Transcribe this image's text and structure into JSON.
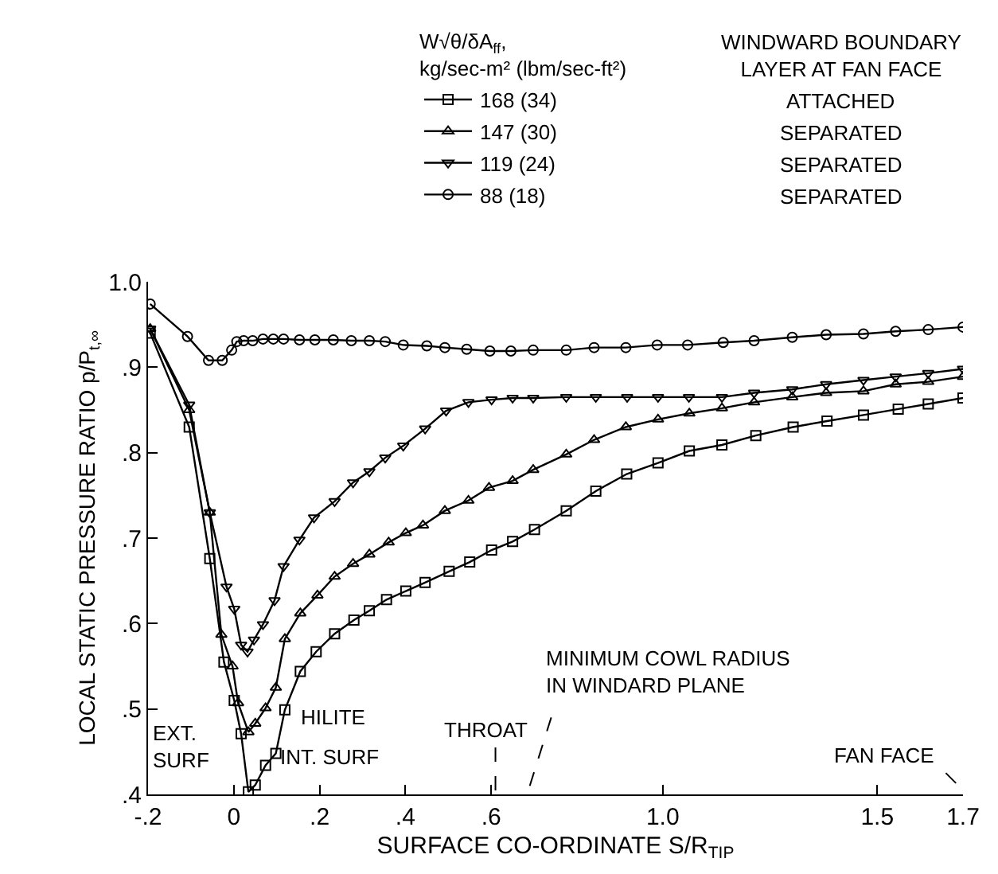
{
  "chart_data": {
    "type": "line",
    "xlabel": "SURFACE CO-ORDINATE S/R$_{TIP}$",
    "ylabel": "LOCAL STATIC PRESSURE RATIO p/P$_{t,∞}$",
    "legend_title": "W√θ/δA$_{ff}$,\nkg/sec-m² (lbm/sec-ft²)",
    "legend": "top",
    "grid": false,
    "xlim": [
      -0.2,
      1.7
    ],
    "ylim": [
      0.4,
      1.0
    ],
    "xticks": [
      {
        "value": -0.2,
        "label": "-.2"
      },
      0,
      {
        "value": 0.2,
        "label": ".2"
      },
      {
        "value": 0.4,
        "label": ".4"
      },
      {
        "value": 0.6,
        "label": ".6"
      },
      {
        "value": 1.0,
        "label": "1.0"
      },
      {
        "value": 1.5,
        "label": "1.5"
      },
      {
        "value": 1.7,
        "label": "1.7"
      }
    ],
    "yticks": [
      {
        "value": 0.4,
        "label": ".4"
      },
      {
        "value": 0.5,
        "label": ".5"
      },
      {
        "value": 0.6,
        "label": ".6"
      },
      {
        "value": 0.7,
        "label": ".7"
      },
      {
        "value": 0.8,
        "label": ".8"
      },
      {
        "value": 0.9,
        "label": ".9"
      },
      {
        "value": 1.0,
        "label": "1.0"
      }
    ],
    "series": [
      {
        "name": "168 (34)",
        "color": "#000000",
        "marker": "square",
        "x": [
          -0.195,
          -0.104,
          -0.056,
          -0.023,
          0.001,
          0.017,
          0.034,
          0.05,
          0.074,
          0.098,
          0.119,
          0.155,
          0.192,
          0.235,
          0.28,
          0.316,
          0.356,
          0.401,
          0.446,
          0.502,
          0.55,
          0.601,
          0.65,
          0.701,
          0.775,
          0.844,
          0.916,
          0.989,
          1.062,
          1.138,
          1.217,
          1.304,
          1.383,
          1.468,
          1.549,
          1.619,
          1.7
        ],
        "values": [
          0.94,
          0.83,
          0.676,
          0.555,
          0.51,
          0.471,
          0.403,
          0.411,
          0.434,
          0.448,
          0.499,
          0.544,
          0.567,
          0.588,
          0.604,
          0.615,
          0.628,
          0.638,
          0.648,
          0.661,
          0.672,
          0.686,
          0.696,
          0.71,
          0.732,
          0.755,
          0.775,
          0.788,
          0.802,
          0.809,
          0.82,
          0.83,
          0.837,
          0.844,
          0.851,
          0.857,
          0.864
        ]
      },
      {
        "name": "147 (30)",
        "color": "#000000",
        "marker": "triangle",
        "x": [
          -0.195,
          -0.104,
          -0.056,
          -0.029,
          -0.003,
          0.01,
          0.034,
          0.05,
          0.074,
          0.098,
          0.119,
          0.155,
          0.195,
          0.235,
          0.278,
          0.316,
          0.361,
          0.401,
          0.441,
          0.492,
          0.547,
          0.595,
          0.65,
          0.698,
          0.775,
          0.84,
          0.914,
          0.989,
          1.062,
          1.138,
          1.213,
          1.302,
          1.381,
          1.468,
          1.543,
          1.619,
          1.7
        ],
        "values": [
          0.945,
          0.85,
          0.73,
          0.587,
          0.55,
          0.507,
          0.473,
          0.483,
          0.501,
          0.525,
          0.582,
          0.612,
          0.633,
          0.655,
          0.67,
          0.681,
          0.695,
          0.706,
          0.715,
          0.732,
          0.744,
          0.759,
          0.767,
          0.78,
          0.798,
          0.815,
          0.83,
          0.839,
          0.846,
          0.852,
          0.859,
          0.865,
          0.87,
          0.872,
          0.88,
          0.883,
          0.889
        ]
      },
      {
        "name": "119 (24)",
        "color": "#000000",
        "marker": "triangle-down",
        "x": [
          -0.195,
          -0.104,
          -0.056,
          -0.017,
          0.001,
          0.017,
          0.032,
          0.047,
          0.068,
          0.095,
          0.116,
          0.153,
          0.187,
          0.235,
          0.278,
          0.316,
          0.353,
          0.395,
          0.446,
          0.495,
          0.547,
          0.601,
          0.65,
          0.698,
          0.775,
          0.844,
          0.917,
          0.989,
          1.061,
          1.138,
          1.213,
          1.302,
          1.381,
          1.468,
          1.543,
          1.619,
          1.7
        ],
        "values": [
          0.945,
          0.856,
          0.73,
          0.643,
          0.617,
          0.575,
          0.567,
          0.581,
          0.599,
          0.627,
          0.667,
          0.698,
          0.724,
          0.743,
          0.765,
          0.778,
          0.794,
          0.808,
          0.828,
          0.849,
          0.859,
          0.862,
          0.864,
          0.864,
          0.865,
          0.865,
          0.865,
          0.865,
          0.865,
          0.865,
          0.87,
          0.874,
          0.88,
          0.885,
          0.889,
          0.893,
          0.898
        ]
      },
      {
        "name": "88 (18)",
        "color": "#000000",
        "marker": "circle",
        "x": [
          -0.195,
          -0.108,
          -0.059,
          -0.027,
          -0.005,
          0.007,
          0.023,
          0.044,
          0.068,
          0.092,
          0.116,
          0.153,
          0.189,
          0.232,
          0.274,
          0.316,
          0.353,
          0.395,
          0.45,
          0.492,
          0.543,
          0.597,
          0.646,
          0.698,
          0.775,
          0.84,
          0.914,
          0.987,
          1.058,
          1.141,
          1.213,
          1.302,
          1.381,
          1.468,
          1.543,
          1.619,
          1.7
        ],
        "values": [
          0.974,
          0.936,
          0.908,
          0.908,
          0.92,
          0.93,
          0.931,
          0.931,
          0.933,
          0.933,
          0.933,
          0.932,
          0.932,
          0.932,
          0.931,
          0.931,
          0.93,
          0.926,
          0.925,
          0.923,
          0.921,
          0.919,
          0.919,
          0.92,
          0.92,
          0.923,
          0.923,
          0.926,
          0.926,
          0.929,
          0.931,
          0.935,
          0.938,
          0.939,
          0.942,
          0.944,
          0.947
        ]
      }
    ],
    "annotations": [
      "WINDWARD BOUNDARY\nLAYER AT FAN FACE",
      "ATTACHED",
      "SEPARATED",
      "SEPARATED",
      "SEPARATED",
      "EXT.\nSURF",
      "HILITE",
      "INT. SURF",
      "THROAT",
      "MINIMUM COWL RADIUS\nIN WINDARD PLANE",
      "FAN FACE"
    ]
  }
}
